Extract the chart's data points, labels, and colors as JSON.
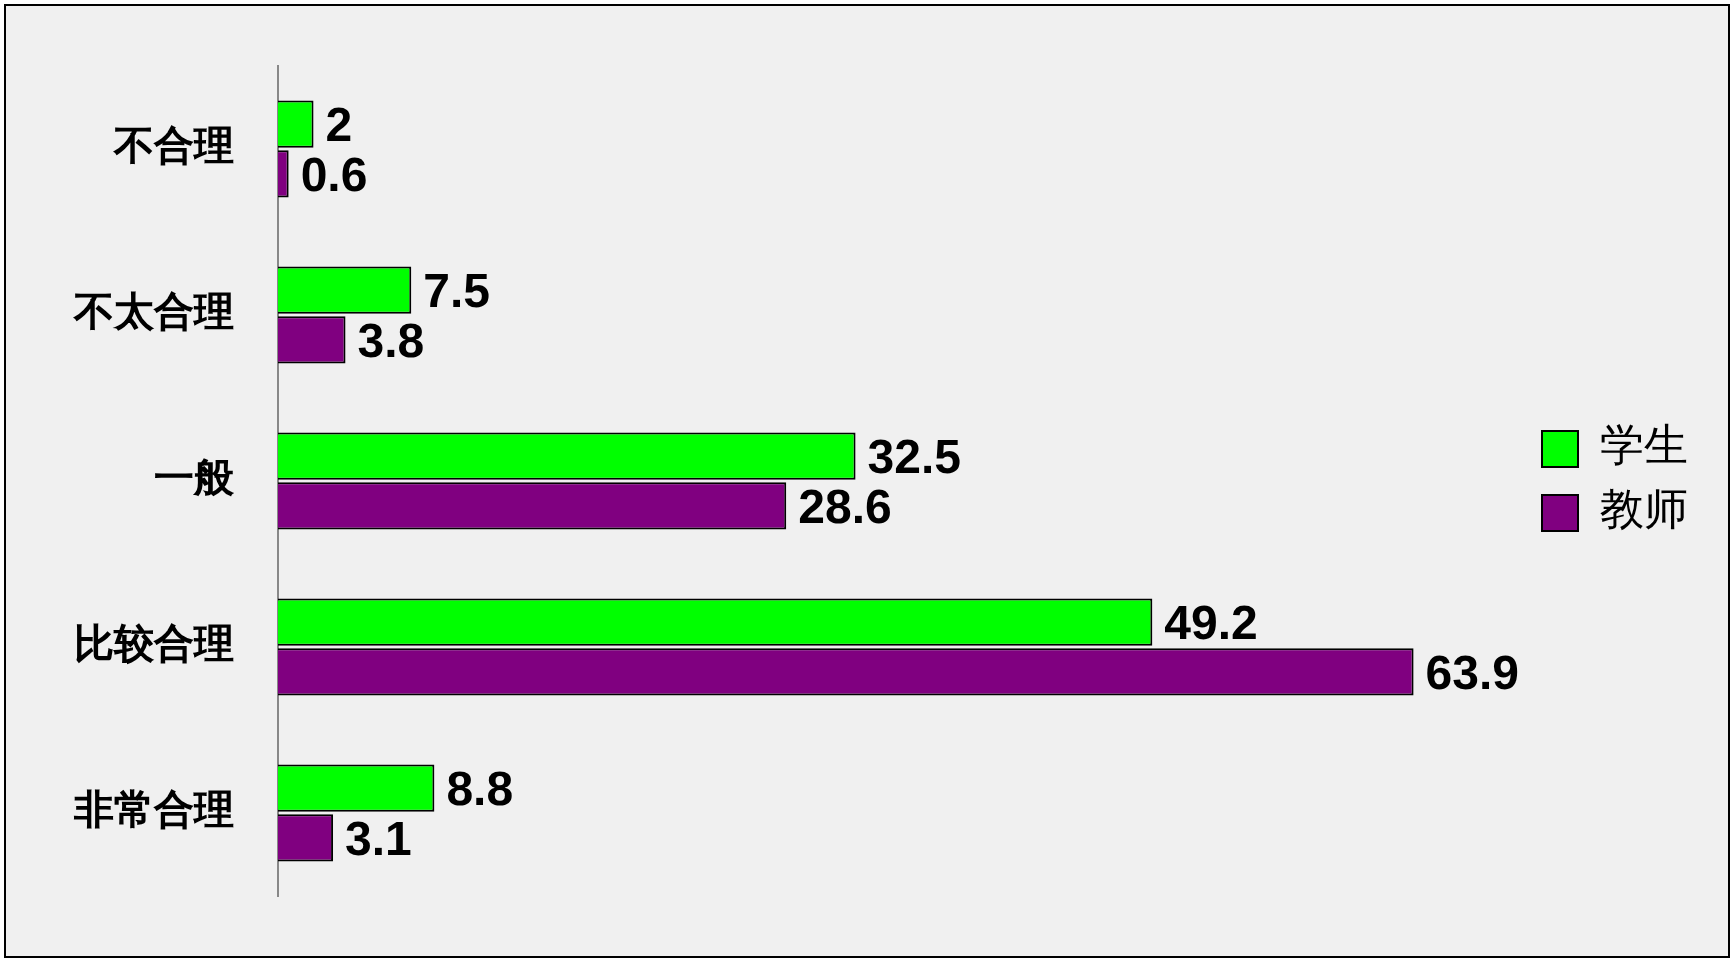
{
  "chart_data": {
    "type": "bar",
    "orientation": "horizontal",
    "categories": [
      "不合理",
      "不太合理",
      "一般",
      "比较合理",
      "非常合理"
    ],
    "series": [
      {
        "name": "学生",
        "color": "#00ff00",
        "values": [
          2,
          7.5,
          32.5,
          49.2,
          8.8
        ]
      },
      {
        "name": "教师",
        "color": "#800080",
        "values": [
          0.6,
          3.8,
          28.6,
          63.9,
          3.1
        ]
      }
    ],
    "data_labels": true,
    "legend": "right",
    "grid": false,
    "tick_labels": "y"
  }
}
